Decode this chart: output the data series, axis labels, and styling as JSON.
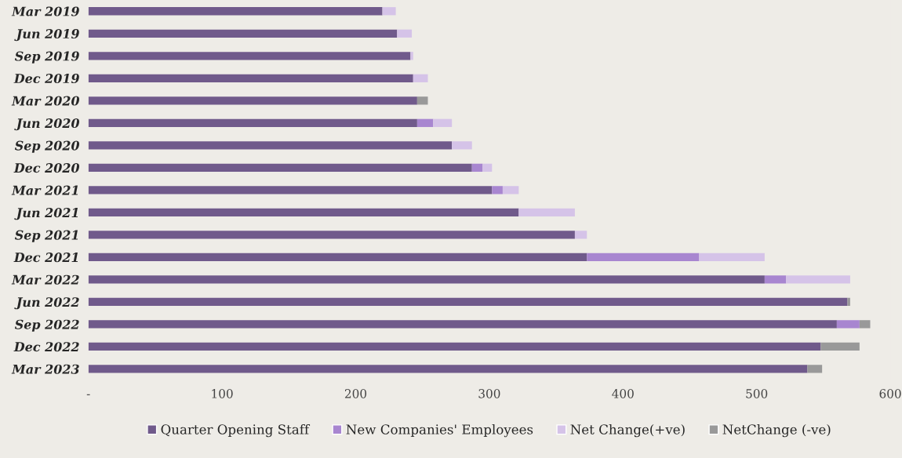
{
  "chart_data": {
    "type": "bar",
    "orientation": "horizontal",
    "stacked": true,
    "categories": [
      "Mar 2019",
      "Jun 2019",
      "Sep 2019",
      "Dec 2019",
      "Mar 2020",
      "Jun 2020",
      "Sep 2020",
      "Dec 2020",
      "Mar 2021",
      "Jun 2021",
      "Sep 2021",
      "Dec 2021",
      "Mar 2022",
      "Jun 2022",
      "Sep 2022",
      "Dec 2022",
      "Mar 2023"
    ],
    "series": [
      {
        "name": "Quarter Opening Staff",
        "color": "#705a8b",
        "values": [
          220,
          231,
          241,
          243,
          246,
          246,
          272,
          287,
          302,
          322,
          364,
          373,
          506,
          568,
          560,
          548,
          538
        ]
      },
      {
        "name": "New Companies' Employees",
        "color": "#a886d0",
        "values": [
          null,
          null,
          null,
          null,
          null,
          12,
          null,
          8,
          8,
          null,
          null,
          84,
          16,
          null,
          17,
          null,
          null
        ]
      },
      {
        "name": "Net Change(+ve)",
        "color": "#d5c3e8",
        "values": [
          10,
          11,
          2,
          11,
          null,
          14,
          15,
          7,
          12,
          42,
          9,
          49,
          48,
          null,
          null,
          null,
          null
        ]
      },
      {
        "name": "NetChange (-ve)",
        "color": "#999999",
        "values": [
          null,
          null,
          null,
          null,
          8,
          null,
          null,
          null,
          null,
          null,
          null,
          null,
          null,
          2,
          8,
          29,
          11
        ]
      }
    ],
    "xlim": [
      0,
      600
    ],
    "xticks": [
      {
        "value": 0,
        "label": "-"
      },
      100,
      200,
      300,
      400,
      500,
      600
    ],
    "grid": false,
    "legend": "bottom"
  }
}
